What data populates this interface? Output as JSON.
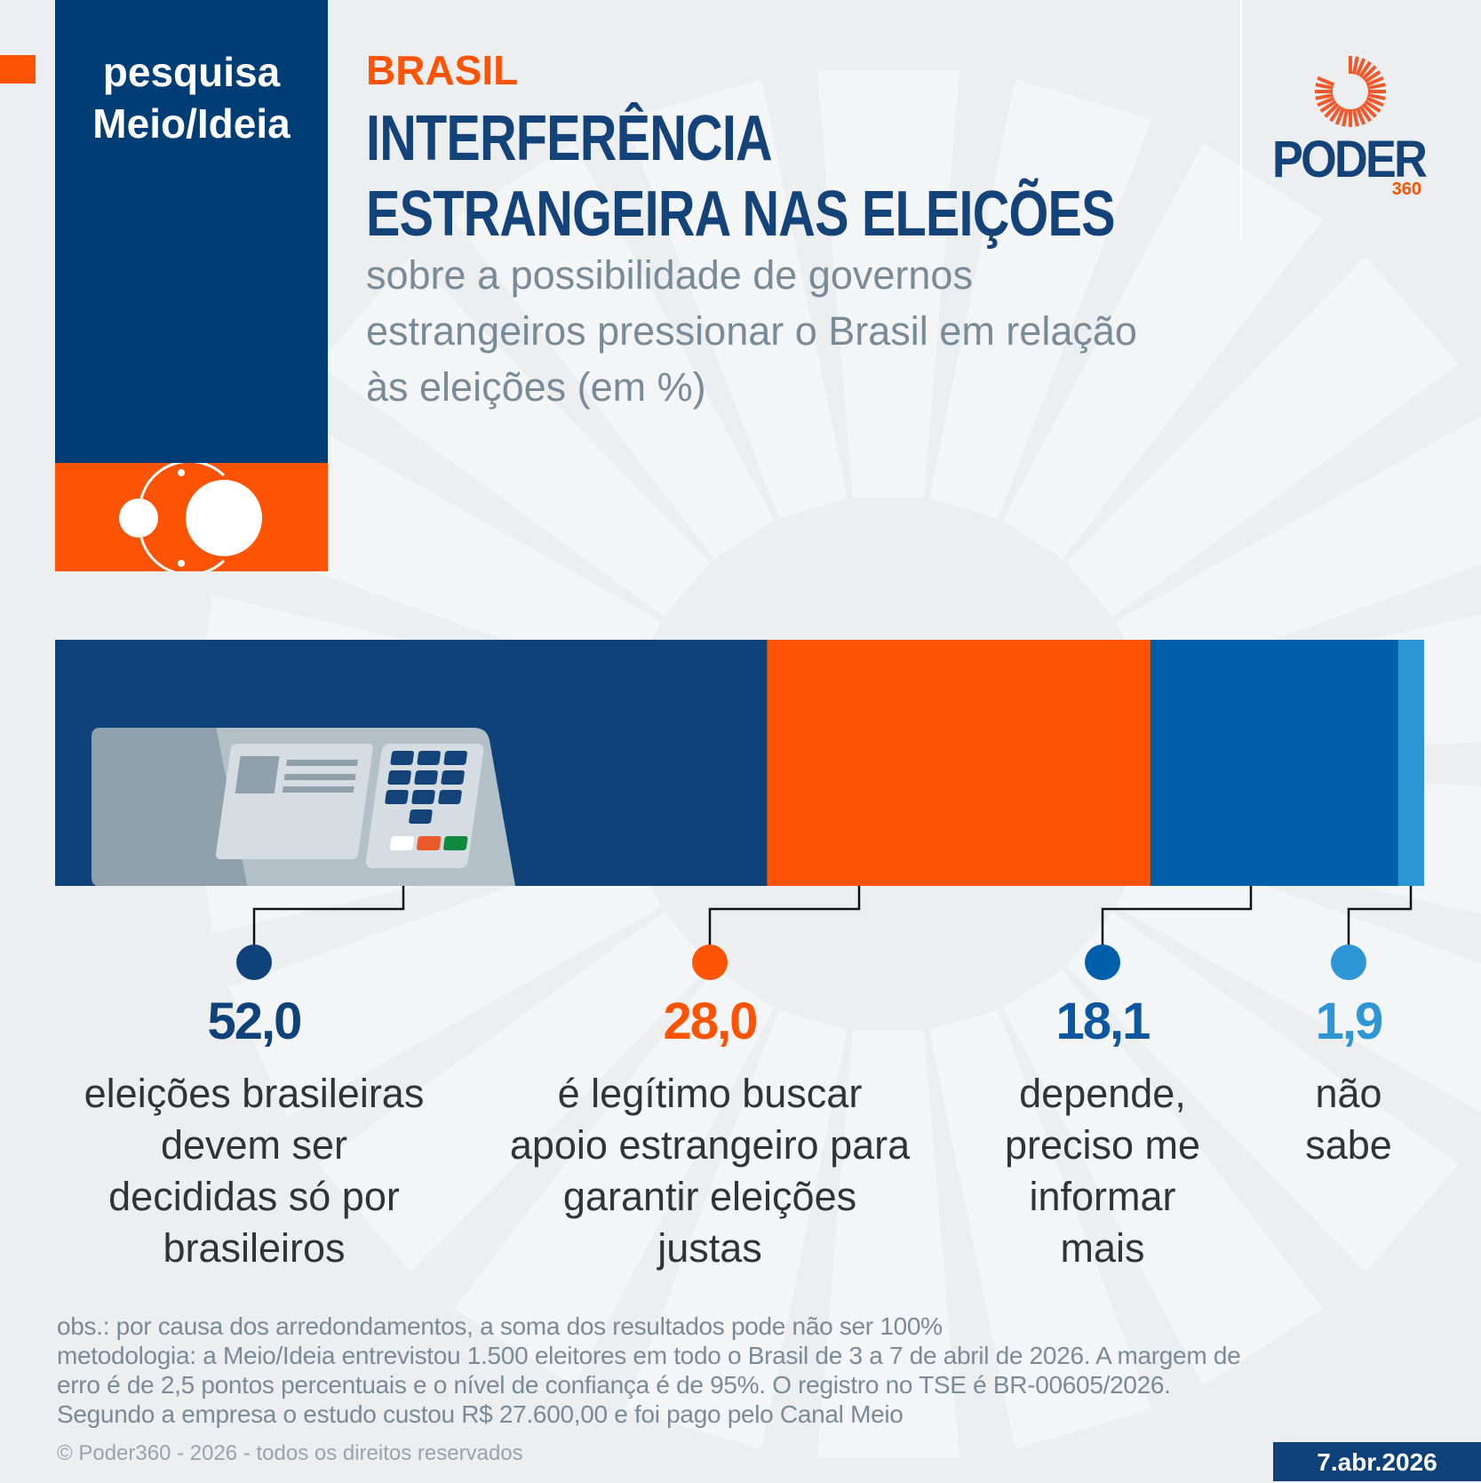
{
  "header": {
    "series_tag": "pesquisa Meio/Ideia",
    "series_line1": "pesquisa",
    "series_line2": "Meio/Ideia",
    "section": "BRASIL",
    "title_line1": "INTERFERÊNCIA",
    "title_line2": "ESTRANGEIRA NAS ELEIÇÕES",
    "subtitle_lines": [
      "sobre a possibilidade de governos",
      "estrangeiros pressionar o Brasil em relação",
      "às eleições (em %)"
    ]
  },
  "logo": {
    "name": "PODER",
    "sub": "360"
  },
  "chart_data": {
    "type": "bar",
    "orientation": "horizontal-stacked",
    "unit": "%",
    "categories": [
      "eleições brasileiras devem ser decididas só por brasileiros",
      "é legítimo buscar apoio estrangeiro para garantir eleições justas",
      "depende, preciso me informar mais",
      "não sabe"
    ],
    "values": [
      52.0,
      28.0,
      18.1,
      1.9
    ],
    "value_labels": [
      "52,0",
      "28,0",
      "18,1",
      "1,9"
    ],
    "label_lines": [
      [
        "eleições brasileiras",
        "devem ser",
        "decididas só por",
        "brasileiros"
      ],
      [
        "é legítimo buscar",
        "apoio estrangeiro para",
        "garantir eleições",
        "justas"
      ],
      [
        "depende,",
        "preciso me",
        "informar",
        "mais"
      ],
      [
        "não",
        "sabe"
      ]
    ],
    "colors": [
      "#10427a",
      "#fc5305",
      "#005faa",
      "#2f96d6"
    ],
    "value_colors": [
      "#10427a",
      "#fc5305",
      "#0d57a0",
      "#2f96d6"
    ]
  },
  "footer": {
    "notes": [
      "obs.: por causa dos arredondamentos, a soma dos resultados pode não ser 100%",
      "metodologia: a Meio/Ideia entrevistou 1.500 eleitores em todo o Brasil de 3 a 7 de abril de 2026. A margem de",
      "erro é de 2,5 pontos percentuais e o nível de confiança é de 95%. O registro no TSE é BR-00605/2026.",
      "Segundo a empresa o estudo custou R$ 27.600,00 e foi pago pelo Canal Meio"
    ],
    "copyright": "© Poder360 - 2026 - todos os direitos reservados",
    "date": "7.abr.2026"
  }
}
